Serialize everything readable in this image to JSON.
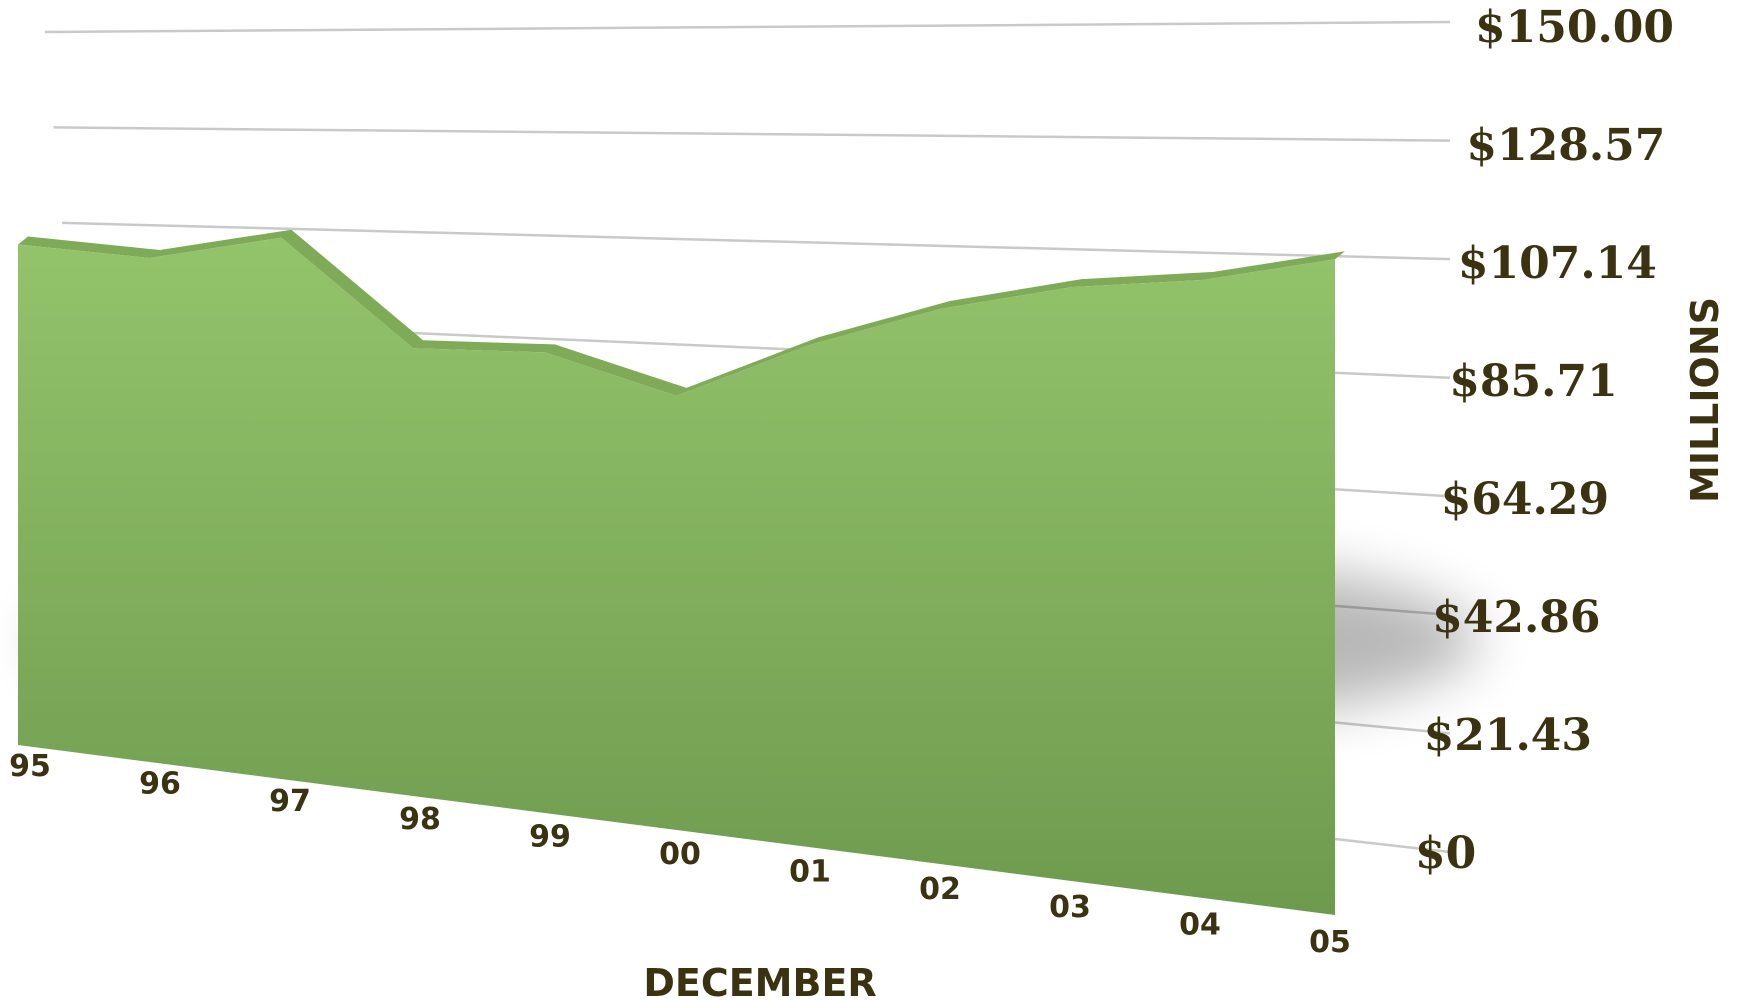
{
  "chart_data": {
    "type": "area",
    "style": "3d",
    "colors": {
      "area_top": "#93c46b",
      "area_bottom": "#6e9a4e",
      "area_ridge": "#7fab58",
      "gridline": "#c9c9c9",
      "text": "#3b3212"
    },
    "x_label": "DECEMBER",
    "y_label": "MILLIONS",
    "categories": [
      "95",
      "96",
      "97",
      "98",
      "99",
      "00",
      "01",
      "02",
      "03",
      "04",
      "05"
    ],
    "values": [
      105,
      105,
      112,
      92,
      94,
      88,
      101,
      111,
      118,
      122,
      128.57
    ],
    "y_ticks": [
      "$0",
      "$21.43",
      "$42.86",
      "$64.29",
      "$85.71",
      "$107.14",
      "$128.57",
      "$150.00"
    ],
    "y_tick_values": [
      0,
      21.43,
      42.86,
      64.29,
      85.71,
      107.14,
      128.57,
      150
    ],
    "ylim": [
      0,
      150
    ],
    "grid": true,
    "legend": "none"
  }
}
